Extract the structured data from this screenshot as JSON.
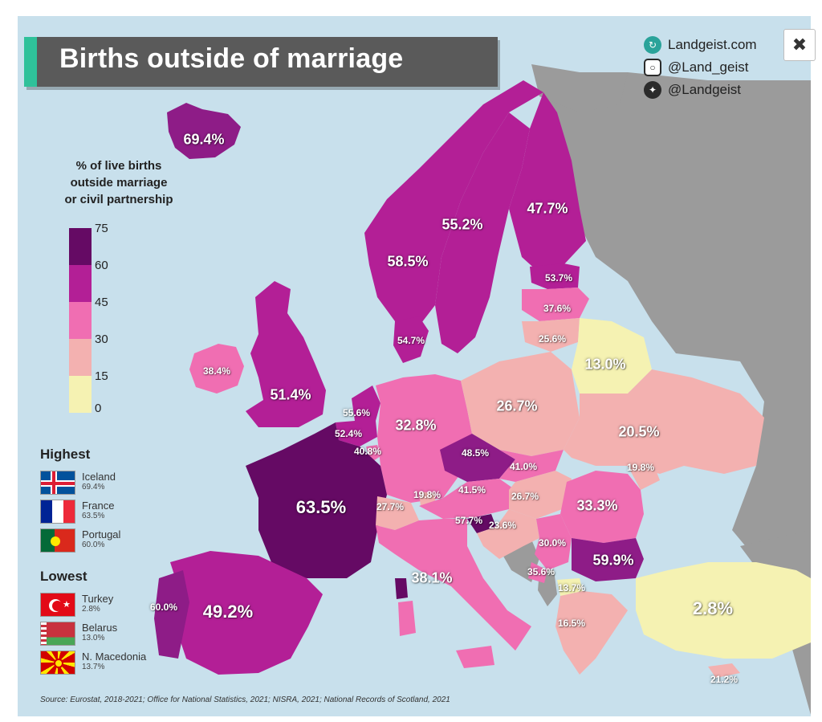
{
  "title": "Births outside of marriage",
  "socials": {
    "website": "Landgeist.com",
    "instagram": "@Land_geist",
    "twitter": "@Landgeist"
  },
  "legend": {
    "title_lines": [
      "% of live births",
      "outside marriage",
      "or civil partnership"
    ],
    "ticks": [
      "75",
      "60",
      "45",
      "30",
      "15",
      "0"
    ],
    "colors": [
      "#650a64",
      "#b31f96",
      "#f06eb2",
      "#f3b1b0",
      "#f5f2b2"
    ]
  },
  "highest": {
    "title": "Highest",
    "items": [
      {
        "name": "Iceland",
        "value": "69.4%"
      },
      {
        "name": "France",
        "value": "63.5%"
      },
      {
        "name": "Portugal",
        "value": "60.0%"
      }
    ]
  },
  "lowest": {
    "title": "Lowest",
    "items": [
      {
        "name": "Turkey",
        "value": "2.8%"
      },
      {
        "name": "Belarus",
        "value": "13.0%"
      },
      {
        "name": "N. Macedonia",
        "value": "13.7%"
      }
    ]
  },
  "map_labels": [
    {
      "country": "iceland",
      "text": "69.4%",
      "size": "mid"
    },
    {
      "country": "norway",
      "text": "58.5%",
      "size": "mid"
    },
    {
      "country": "sweden",
      "text": "55.2%",
      "size": "mid"
    },
    {
      "country": "finland",
      "text": "47.7%",
      "size": "mid"
    },
    {
      "country": "estonia",
      "text": "53.7%",
      "size": "sm"
    },
    {
      "country": "latvia",
      "text": "37.6%",
      "size": "sm"
    },
    {
      "country": "lithuania",
      "text": "25.6%",
      "size": "sm"
    },
    {
      "country": "denmark",
      "text": "54.7%",
      "size": "sm"
    },
    {
      "country": "ireland",
      "text": "38.4%",
      "size": "sm"
    },
    {
      "country": "uk",
      "text": "51.4%",
      "size": "mid"
    },
    {
      "country": "netherlands",
      "text": "55.6%",
      "size": "sm"
    },
    {
      "country": "belgium",
      "text": "52.4%",
      "size": "sm"
    },
    {
      "country": "luxembourg",
      "text": "40.8%",
      "size": "sm"
    },
    {
      "country": "germany",
      "text": "32.8%",
      "size": "mid"
    },
    {
      "country": "poland",
      "text": "26.7%",
      "size": "mid"
    },
    {
      "country": "belarus",
      "text": "13.0%",
      "size": "mid"
    },
    {
      "country": "ukraine",
      "text": "20.5%",
      "size": "mid"
    },
    {
      "country": "czechia",
      "text": "48.5%",
      "size": "sm"
    },
    {
      "country": "slovakia",
      "text": "41.0%",
      "size": "sm"
    },
    {
      "country": "moldova",
      "text": "19.8%",
      "size": "sm"
    },
    {
      "country": "france",
      "text": "63.5%",
      "size": "big"
    },
    {
      "country": "switzerland",
      "text": "27.7%",
      "size": "sm"
    },
    {
      "country": "liechtenstein",
      "text": "19.8%",
      "size": "sm"
    },
    {
      "country": "austria",
      "text": "41.5%",
      "size": "sm"
    },
    {
      "country": "hungary",
      "text": "26.7%",
      "size": "sm"
    },
    {
      "country": "romania",
      "text": "33.3%",
      "size": "mid"
    },
    {
      "country": "slovenia",
      "text": "57.7%",
      "size": "sm"
    },
    {
      "country": "croatia",
      "text": "23.6%",
      "size": "sm"
    },
    {
      "country": "serbia",
      "text": "30.0%",
      "size": "sm"
    },
    {
      "country": "bulgaria",
      "text": "59.9%",
      "size": "mid"
    },
    {
      "country": "montenegro",
      "text": "35.6%",
      "size": "sm"
    },
    {
      "country": "n-macedonia",
      "text": "13.7%",
      "size": "sm"
    },
    {
      "country": "italy",
      "text": "38.1%",
      "size": "mid"
    },
    {
      "country": "portugal",
      "text": "60.0%",
      "size": "sm"
    },
    {
      "country": "spain",
      "text": "49.2%",
      "size": "big"
    },
    {
      "country": "greece",
      "text": "16.5%",
      "size": "sm"
    },
    {
      "country": "turkey",
      "text": "2.8%",
      "size": "big"
    },
    {
      "country": "cyprus",
      "text": "21.2%",
      "size": "sm"
    }
  ],
  "source": "Source: Eurostat, 2018-2021; Office for National Statistics, 2021; NISRA, 2021; National Records of Scotland, 2021"
}
